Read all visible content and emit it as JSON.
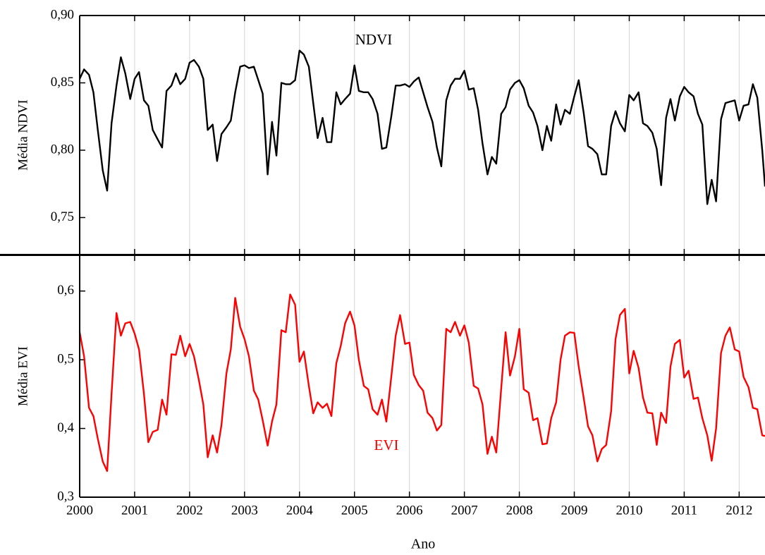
{
  "chart_data": [
    {
      "type": "line",
      "ylabel": "Média NDVI",
      "annotation": "NDVI",
      "color": "#000000",
      "x": [
        2000,
        2000.08,
        2000.17,
        2000.25,
        2000.33,
        2000.42,
        2000.5,
        2000.58,
        2000.67,
        2000.75,
        2000.83,
        2000.92,
        2001,
        2001.08,
        2001.17,
        2001.25,
        2001.33,
        2001.42,
        2001.5,
        2001.58,
        2001.67,
        2001.75,
        2001.83,
        2001.92,
        2002,
        2002.08,
        2002.17,
        2002.25,
        2002.33,
        2002.42,
        2002.5,
        2002.58,
        2002.67,
        2002.75,
        2002.83,
        2002.92,
        2003,
        2003.08,
        2003.17,
        2003.25,
        2003.33,
        2003.42,
        2003.5,
        2003.58,
        2003.67,
        2003.75,
        2003.83,
        2003.92,
        2004,
        2004.08,
        2004.17,
        2004.25,
        2004.33,
        2004.42,
        2004.5,
        2004.58,
        2004.67,
        2004.75,
        2004.83,
        2004.92,
        2005,
        2005.08,
        2005.17,
        2005.25,
        2005.33,
        2005.42,
        2005.5,
        2005.58,
        2005.67,
        2005.75,
        2005.83,
        2005.92,
        2006,
        2006.08,
        2006.17,
        2006.25,
        2006.33,
        2006.42,
        2006.5,
        2006.58,
        2006.67,
        2006.75,
        2006.83,
        2006.92,
        2007,
        2007.08,
        2007.17,
        2007.25,
        2007.33,
        2007.42,
        2007.5,
        2007.58,
        2007.67,
        2007.75,
        2007.83,
        2007.92,
        2008,
        2008.08,
        2008.17,
        2008.25,
        2008.33,
        2008.42,
        2008.5,
        2008.58,
        2008.67,
        2008.75,
        2008.83,
        2008.92,
        2009,
        2009.08,
        2009.17,
        2009.25,
        2009.33,
        2009.42,
        2009.5,
        2009.58,
        2009.67,
        2009.75,
        2009.83,
        2009.92,
        2010,
        2010.08,
        2010.17,
        2010.25,
        2010.33,
        2010.42,
        2010.5,
        2010.58,
        2010.67,
        2010.75,
        2010.83,
        2010.92,
        2011,
        2011.08,
        2011.17,
        2011.25,
        2011.33,
        2011.42,
        2011.5,
        2011.58,
        2011.67,
        2011.75,
        2011.83,
        2011.92,
        2012,
        2012.08,
        2012.17,
        2012.25,
        2012.33,
        2012.42,
        2012.47
      ],
      "values": [
        0.853,
        0.86,
        0.856,
        0.843,
        0.815,
        0.785,
        0.77,
        0.82,
        0.848,
        0.869,
        0.857,
        0.838,
        0.853,
        0.858,
        0.837,
        0.833,
        0.815,
        0.808,
        0.802,
        0.844,
        0.848,
        0.857,
        0.849,
        0.853,
        0.865,
        0.867,
        0.862,
        0.853,
        0.815,
        0.819,
        0.792,
        0.812,
        0.817,
        0.822,
        0.843,
        0.862,
        0.863,
        0.861,
        0.862,
        0.852,
        0.842,
        0.782,
        0.821,
        0.796,
        0.85,
        0.849,
        0.849,
        0.852,
        0.874,
        0.871,
        0.862,
        0.835,
        0.809,
        0.824,
        0.806,
        0.806,
        0.843,
        0.834,
        0.838,
        0.842,
        0.863,
        0.844,
        0.843,
        0.843,
        0.838,
        0.827,
        0.801,
        0.802,
        0.825,
        0.848,
        0.848,
        0.849,
        0.847,
        0.851,
        0.854,
        0.843,
        0.832,
        0.821,
        0.802,
        0.788,
        0.837,
        0.848,
        0.853,
        0.853,
        0.859,
        0.845,
        0.846,
        0.83,
        0.805,
        0.782,
        0.795,
        0.79,
        0.827,
        0.832,
        0.845,
        0.85,
        0.852,
        0.846,
        0.833,
        0.828,
        0.818,
        0.8,
        0.818,
        0.807,
        0.834,
        0.819,
        0.83,
        0.827,
        0.84,
        0.852,
        0.828,
        0.803,
        0.801,
        0.797,
        0.782,
        0.782,
        0.818,
        0.829,
        0.82,
        0.814,
        0.841,
        0.837,
        0.843,
        0.82,
        0.818,
        0.813,
        0.801,
        0.774,
        0.824,
        0.838,
        0.822,
        0.84,
        0.847,
        0.843,
        0.84,
        0.827,
        0.819,
        0.76,
        0.778,
        0.762,
        0.823,
        0.835,
        0.836,
        0.837,
        0.822,
        0.833,
        0.834,
        0.849,
        0.839,
        0.8,
        0.773
      ],
      "xlim": [
        2000,
        2012.47
      ],
      "xticks": [
        2000,
        2001,
        2002,
        2003,
        2004,
        2005,
        2006,
        2007,
        2008,
        2009,
        2010,
        2011,
        2012
      ],
      "ylim": [
        0.7225,
        0.9
      ],
      "yticks": [
        {
          "value": 0.75,
          "label": "0,75"
        },
        {
          "value": 0.8,
          "label": "0,80"
        },
        {
          "value": 0.85,
          "label": "0,85"
        },
        {
          "value": 0.9,
          "label": "0,90"
        }
      ],
      "grid": true
    },
    {
      "type": "line",
      "ylabel": "Média EVI",
      "xlabel": "Ano",
      "annotation": "EVI",
      "color": "#ff0000",
      "x": [
        2000,
        2000.08,
        2000.17,
        2000.25,
        2000.33,
        2000.42,
        2000.5,
        2000.58,
        2000.67,
        2000.75,
        2000.83,
        2000.92,
        2001,
        2001.08,
        2001.17,
        2001.25,
        2001.33,
        2001.42,
        2001.5,
        2001.58,
        2001.67,
        2001.75,
        2001.83,
        2001.92,
        2002,
        2002.08,
        2002.17,
        2002.25,
        2002.33,
        2002.42,
        2002.5,
        2002.58,
        2002.67,
        2002.75,
        2002.83,
        2002.92,
        2003,
        2003.08,
        2003.17,
        2003.25,
        2003.33,
        2003.42,
        2003.5,
        2003.58,
        2003.67,
        2003.75,
        2003.83,
        2003.92,
        2004,
        2004.08,
        2004.17,
        2004.25,
        2004.33,
        2004.42,
        2004.5,
        2004.58,
        2004.67,
        2004.75,
        2004.83,
        2004.92,
        2005,
        2005.08,
        2005.17,
        2005.25,
        2005.33,
        2005.42,
        2005.5,
        2005.58,
        2005.67,
        2005.75,
        2005.83,
        2005.92,
        2006,
        2006.08,
        2006.17,
        2006.25,
        2006.33,
        2006.42,
        2006.5,
        2006.58,
        2006.67,
        2006.75,
        2006.83,
        2006.92,
        2007,
        2007.08,
        2007.17,
        2007.25,
        2007.33,
        2007.42,
        2007.5,
        2007.58,
        2007.67,
        2007.75,
        2007.83,
        2007.92,
        2008,
        2008.08,
        2008.17,
        2008.25,
        2008.33,
        2008.42,
        2008.5,
        2008.58,
        2008.67,
        2008.75,
        2008.83,
        2008.92,
        2009,
        2009.08,
        2009.17,
        2009.25,
        2009.33,
        2009.42,
        2009.5,
        2009.58,
        2009.67,
        2009.75,
        2009.83,
        2009.92,
        2010,
        2010.08,
        2010.17,
        2010.25,
        2010.33,
        2010.42,
        2010.5,
        2010.58,
        2010.67,
        2010.75,
        2010.83,
        2010.92,
        2011,
        2011.08,
        2011.17,
        2011.25,
        2011.33,
        2011.42,
        2011.5,
        2011.58,
        2011.67,
        2011.75,
        2011.83,
        2011.92,
        2012,
        2012.08,
        2012.17,
        2012.25,
        2012.33,
        2012.42,
        2012.47
      ],
      "values": [
        0.54,
        0.505,
        0.43,
        0.418,
        0.385,
        0.352,
        0.338,
        0.45,
        0.568,
        0.535,
        0.553,
        0.555,
        0.538,
        0.515,
        0.45,
        0.38,
        0.395,
        0.398,
        0.442,
        0.42,
        0.508,
        0.507,
        0.535,
        0.505,
        0.523,
        0.505,
        0.47,
        0.435,
        0.358,
        0.39,
        0.365,
        0.405,
        0.48,
        0.515,
        0.59,
        0.548,
        0.53,
        0.505,
        0.455,
        0.442,
        0.412,
        0.375,
        0.41,
        0.435,
        0.543,
        0.54,
        0.595,
        0.58,
        0.497,
        0.512,
        0.462,
        0.422,
        0.438,
        0.43,
        0.436,
        0.418,
        0.495,
        0.52,
        0.553,
        0.57,
        0.55,
        0.5,
        0.462,
        0.457,
        0.428,
        0.42,
        0.442,
        0.41,
        0.475,
        0.535,
        0.565,
        0.523,
        0.525,
        0.478,
        0.463,
        0.455,
        0.423,
        0.415,
        0.397,
        0.405,
        0.545,
        0.54,
        0.555,
        0.535,
        0.55,
        0.525,
        0.462,
        0.458,
        0.435,
        0.363,
        0.388,
        0.365,
        0.458,
        0.54,
        0.477,
        0.505,
        0.545,
        0.457,
        0.452,
        0.412,
        0.415,
        0.377,
        0.378,
        0.415,
        0.438,
        0.5,
        0.535,
        0.54,
        0.539,
        0.49,
        0.445,
        0.403,
        0.39,
        0.352,
        0.37,
        0.376,
        0.425,
        0.53,
        0.565,
        0.574,
        0.48,
        0.513,
        0.488,
        0.445,
        0.423,
        0.422,
        0.376,
        0.423,
        0.408,
        0.49,
        0.523,
        0.529,
        0.474,
        0.484,
        0.443,
        0.445,
        0.415,
        0.39,
        0.353,
        0.4,
        0.51,
        0.535,
        0.547,
        0.515,
        0.512,
        0.475,
        0.46,
        0.43,
        0.428,
        0.39,
        0.389
      ],
      "xlim": [
        2000,
        2012.47
      ],
      "xticks": [
        2000,
        2001,
        2002,
        2003,
        2004,
        2005,
        2006,
        2007,
        2008,
        2009,
        2010,
        2011,
        2012
      ],
      "ylim": [
        0.3,
        0.652
      ],
      "yticks": [
        {
          "value": 0.3,
          "label": "0,3"
        },
        {
          "value": 0.4,
          "label": "0,4"
        },
        {
          "value": 0.5,
          "label": "0,5"
        },
        {
          "value": 0.6,
          "label": "0,6"
        }
      ],
      "grid": true
    }
  ]
}
